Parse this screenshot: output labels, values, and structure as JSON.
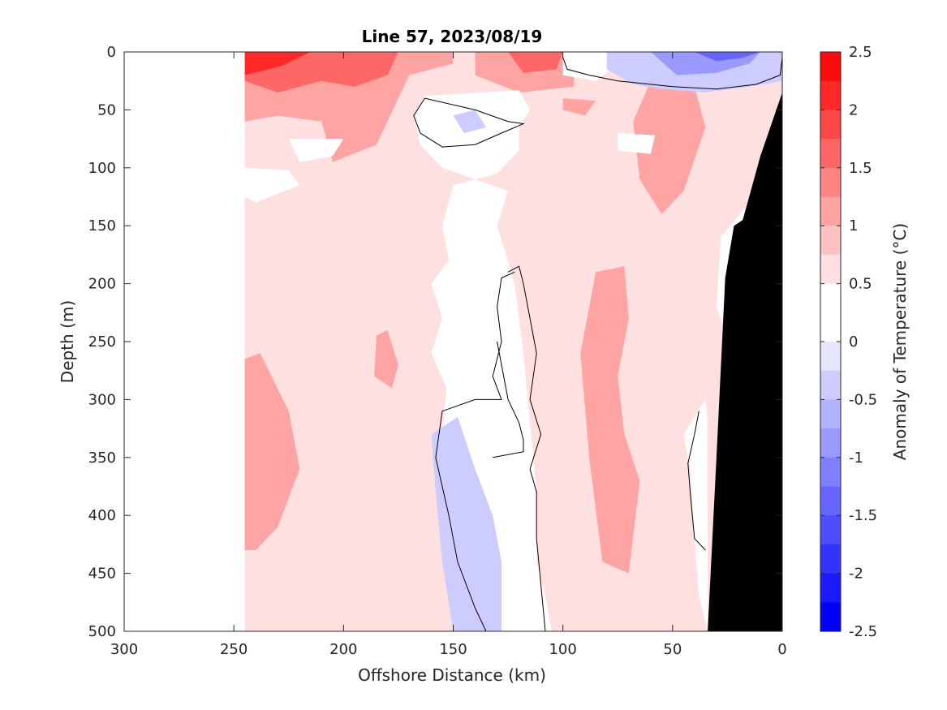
{
  "chart_data": {
    "type": "heatmap",
    "subtype": "filled-contour section",
    "title": "Line 57, 2023/08/19",
    "xlabel": "Offshore Distance (km)",
    "ylabel": "Depth (m)",
    "colorbar_label": "Anomaly of Temperature (°C)",
    "xlim": [
      300,
      0
    ],
    "x_reversed": true,
    "ylim": [
      0,
      500
    ],
    "y_reversed": true,
    "x_ticks": [
      300,
      250,
      200,
      150,
      100,
      50,
      0
    ],
    "y_ticks": [
      0,
      50,
      100,
      150,
      200,
      250,
      300,
      350,
      400,
      450,
      500
    ],
    "colorbar_ticks": [
      "2.5",
      "2",
      "1.5",
      "1",
      "0.5",
      "0",
      "-0.5",
      "-1",
      "-1.5",
      "-2",
      "-2.5"
    ],
    "levels": [
      -2.5,
      -2.25,
      -2,
      -1.75,
      -1.5,
      -1.25,
      -1,
      -0.75,
      -0.5,
      -0.25,
      0,
      0.25,
      0.5,
      0.75,
      1,
      1.25,
      1.5,
      1.75,
      2,
      2.25,
      2.5
    ],
    "level_colors": [
      "#0000ff",
      "#1a1aff",
      "#3333ff",
      "#4d4dff",
      "#6666ff",
      "#8080ff",
      "#9999ff",
      "#b3b3ff",
      "#ccccff",
      "#e6e6ff",
      "#ffffff",
      "#ffffff",
      "#ffe0e0",
      "#ffc2c2",
      "#ffa3a3",
      "#ff8585",
      "#ff6666",
      "#ff4747",
      "#ff2929",
      "#ff0a0a"
    ],
    "data_coverage_km": [
      245,
      0
    ],
    "zero_contour_color": "#000000",
    "bathymetry_color": "#000000",
    "bottom_profile": {
      "distance_km": [
        0,
        10,
        18,
        22,
        26,
        30,
        34
      ],
      "depth_m": [
        35,
        90,
        145,
        150,
        195,
        350,
        500
      ]
    },
    "regions": [
      {
        "anomaly_c": 0.5,
        "points": [
          [
            245,
            0
          ],
          [
            0,
            0
          ],
          [
            0,
            500
          ],
          [
            245,
            500
          ]
        ]
      },
      {
        "anomaly_c": 1.0,
        "points": [
          [
            245,
            0
          ],
          [
            150,
            0
          ],
          [
            150,
            10
          ],
          [
            170,
            20
          ],
          [
            185,
            80
          ],
          [
            205,
            95
          ],
          [
            210,
            60
          ],
          [
            230,
            55
          ],
          [
            245,
            60
          ]
        ]
      },
      {
        "anomaly_c": 1.0,
        "points": [
          [
            140,
            0
          ],
          [
            95,
            0
          ],
          [
            95,
            30
          ],
          [
            120,
            35
          ],
          [
            140,
            20
          ]
        ]
      },
      {
        "anomaly_c": 1.0,
        "points": [
          [
            60,
            25
          ],
          [
            40,
            30
          ],
          [
            35,
            65
          ],
          [
            45,
            120
          ],
          [
            55,
            140
          ],
          [
            65,
            110
          ],
          [
            68,
            60
          ]
        ]
      },
      {
        "anomaly_c": 1.0,
        "points": [
          [
            100,
            40
          ],
          [
            85,
            42
          ],
          [
            90,
            55
          ],
          [
            100,
            50
          ]
        ]
      },
      {
        "anomaly_c": 1.0,
        "points": [
          [
            245,
            265
          ],
          [
            238,
            260
          ],
          [
            225,
            310
          ],
          [
            220,
            360
          ],
          [
            230,
            410
          ],
          [
            240,
            430
          ],
          [
            245,
            430
          ]
        ]
      },
      {
        "anomaly_c": 1.0,
        "points": [
          [
            85,
            190
          ],
          [
            72,
            185
          ],
          [
            70,
            230
          ],
          [
            75,
            280
          ],
          [
            72,
            330
          ],
          [
            65,
            370
          ],
          [
            70,
            450
          ],
          [
            82,
            440
          ],
          [
            88,
            350
          ],
          [
            92,
            260
          ]
        ]
      },
      {
        "anomaly_c": 1.0,
        "points": [
          [
            185,
            245
          ],
          [
            180,
            240
          ],
          [
            175,
            270
          ],
          [
            178,
            290
          ],
          [
            186,
            280
          ]
        ]
      },
      {
        "anomaly_c": 1.5,
        "points": [
          [
            245,
            0
          ],
          [
            175,
            0
          ],
          [
            180,
            20
          ],
          [
            195,
            30
          ],
          [
            210,
            25
          ],
          [
            230,
            35
          ],
          [
            245,
            25
          ]
        ]
      },
      {
        "anomaly_c": 1.5,
        "points": [
          [
            125,
            0
          ],
          [
            100,
            0
          ],
          [
            103,
            15
          ],
          [
            118,
            18
          ]
        ]
      },
      {
        "anomaly_c": 2.0,
        "points": [
          [
            245,
            0
          ],
          [
            215,
            0
          ],
          [
            228,
            12
          ],
          [
            245,
            20
          ]
        ]
      },
      {
        "anomaly_c": 0.0,
        "points": [
          [
            163,
            38
          ],
          [
            120,
            33
          ],
          [
            115,
            50
          ],
          [
            120,
            65
          ],
          [
            120,
            85
          ],
          [
            130,
            105
          ],
          [
            150,
            115
          ],
          [
            155,
            150
          ],
          [
            152,
            180
          ],
          [
            160,
            200
          ],
          [
            155,
            230
          ],
          [
            160,
            260
          ],
          [
            153,
            290
          ],
          [
            155,
            330
          ],
          [
            150,
            360
          ],
          [
            145,
            390
          ],
          [
            140,
            430
          ],
          [
            135,
            500
          ],
          [
            105,
            500
          ],
          [
            108,
            470
          ],
          [
            112,
            440
          ],
          [
            112,
            380
          ],
          [
            115,
            320
          ],
          [
            118,
            260
          ],
          [
            122,
            200
          ],
          [
            130,
            150
          ],
          [
            125,
            120
          ],
          [
            155,
            100
          ],
          [
            165,
            80
          ],
          [
            168,
            55
          ]
        ]
      },
      {
        "anomaly_c": 0.0,
        "points": [
          [
            100,
            0
          ],
          [
            80,
            0
          ],
          [
            78,
            15
          ],
          [
            85,
            25
          ],
          [
            100,
            20
          ]
        ]
      },
      {
        "anomaly_c": 0.0,
        "points": [
          [
            225,
            75
          ],
          [
            200,
            75
          ],
          [
            205,
            90
          ],
          [
            220,
            95
          ]
        ]
      },
      {
        "anomaly_c": 0.0,
        "points": [
          [
            245,
            100
          ],
          [
            225,
            102
          ],
          [
            220,
            115
          ],
          [
            240,
            130
          ],
          [
            245,
            125
          ]
        ]
      },
      {
        "anomaly_c": 0.0,
        "points": [
          [
            75,
            70
          ],
          [
            58,
            72
          ],
          [
            60,
            88
          ],
          [
            75,
            85
          ]
        ]
      },
      {
        "anomaly_c": 0.0,
        "points": [
          [
            35,
            300
          ],
          [
            45,
            330
          ],
          [
            42,
            360
          ],
          [
            40,
            420
          ],
          [
            38,
            470
          ],
          [
            34,
            500
          ],
          [
            34,
            320
          ]
        ]
      },
      {
        "anomaly_c": 0.0,
        "points": [
          [
            15,
            130
          ],
          [
            12,
            180
          ],
          [
            10,
            240
          ],
          [
            20,
            270
          ],
          [
            30,
            220
          ],
          [
            28,
            160
          ]
        ]
      },
      {
        "anomaly_c": -0.5,
        "points": [
          [
            80,
            0
          ],
          [
            0,
            0
          ],
          [
            0,
            25
          ],
          [
            15,
            30
          ],
          [
            35,
            35
          ],
          [
            55,
            32
          ],
          [
            68,
            28
          ],
          [
            80,
            15
          ]
        ]
      },
      {
        "anomaly_c": -0.5,
        "points": [
          [
            160,
            330
          ],
          [
            148,
            315
          ],
          [
            140,
            360
          ],
          [
            132,
            400
          ],
          [
            128,
            440
          ],
          [
            128,
            500
          ],
          [
            150,
            500
          ],
          [
            155,
            440
          ],
          [
            158,
            380
          ]
        ]
      },
      {
        "anomaly_c": -0.5,
        "points": [
          [
            150,
            55
          ],
          [
            140,
            50
          ],
          [
            135,
            65
          ],
          [
            145,
            70
          ]
        ]
      },
      {
        "anomaly_c": -1.0,
        "points": [
          [
            60,
            0
          ],
          [
            10,
            0
          ],
          [
            15,
            10
          ],
          [
            30,
            18
          ],
          [
            48,
            20
          ]
        ]
      },
      {
        "anomaly_c": -1.5,
        "points": [
          [
            40,
            0
          ],
          [
            10,
            0
          ],
          [
            18,
            5
          ],
          [
            30,
            8
          ]
        ]
      }
    ],
    "zero_contours": [
      {
        "points": [
          [
            100,
            5
          ],
          [
            98,
            15
          ],
          [
            88,
            20
          ],
          [
            75,
            25
          ],
          [
            50,
            30
          ],
          [
            30,
            32
          ],
          [
            12,
            28
          ],
          [
            1,
            20
          ],
          [
            0,
            5
          ]
        ]
      },
      {
        "points": [
          [
            163,
            40
          ],
          [
            140,
            50
          ],
          [
            125,
            60
          ],
          [
            118,
            62
          ],
          [
            128,
            70
          ],
          [
            140,
            80
          ],
          [
            155,
            82
          ],
          [
            165,
            70
          ],
          [
            168,
            55
          ],
          [
            163,
            40
          ]
        ]
      },
      {
        "points": [
          [
            125,
            190
          ],
          [
            120,
            185
          ],
          [
            118,
            200
          ],
          [
            115,
            230
          ],
          [
            112,
            260
          ],
          [
            115,
            300
          ],
          [
            110,
            330
          ],
          [
            115,
            360
          ],
          [
            112,
            380
          ],
          [
            112,
            420
          ],
          [
            110,
            460
          ],
          [
            108,
            500
          ]
        ]
      },
      {
        "points": [
          [
            122,
            190
          ],
          [
            128,
            195
          ],
          [
            130,
            220
          ],
          [
            128,
            250
          ],
          [
            132,
            280
          ],
          [
            128,
            300
          ],
          [
            140,
            300
          ],
          [
            155,
            310
          ],
          [
            158,
            350
          ],
          [
            152,
            400
          ],
          [
            148,
            440
          ],
          [
            140,
            480
          ],
          [
            135,
            500
          ]
        ]
      },
      {
        "points": [
          [
            130,
            250
          ],
          [
            125,
            300
          ],
          [
            120,
            320
          ],
          [
            118,
            335
          ],
          [
            118,
            345
          ],
          [
            132,
            350
          ]
        ]
      },
      {
        "points": [
          [
            38,
            310
          ],
          [
            40,
            330
          ],
          [
            43,
            355
          ],
          [
            42,
            380
          ],
          [
            40,
            420
          ],
          [
            35,
            430
          ]
        ]
      }
    ]
  }
}
